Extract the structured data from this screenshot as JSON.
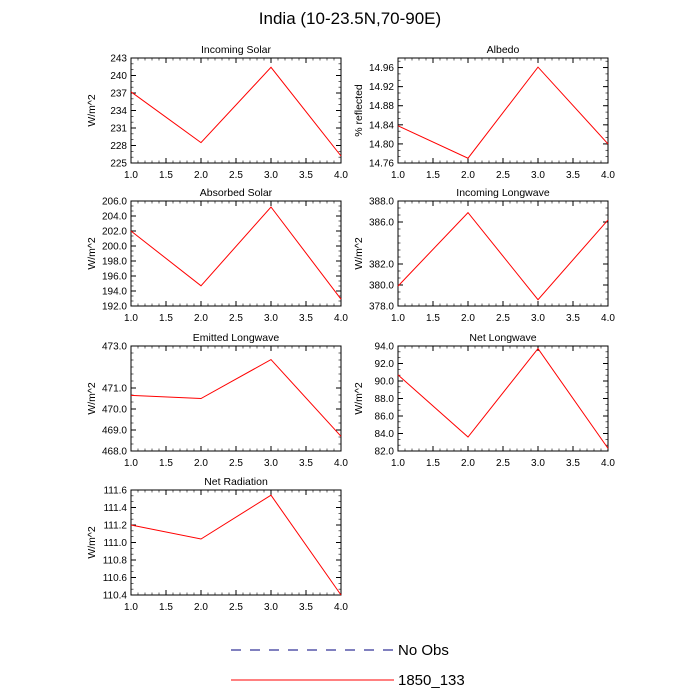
{
  "figure": {
    "title": "India (10-23.5N,70-90E)",
    "line_color": "#ff0000",
    "obs_color": "#00007f"
  },
  "legend": {
    "entries": [
      {
        "label": "No Obs",
        "style": "dashed"
      },
      {
        "label": "1850_133",
        "style": "solid"
      }
    ]
  },
  "chart_data": [
    {
      "type": "line",
      "title": "Incoming Solar",
      "ylabel": "W/m^2",
      "x": [
        1.0,
        2.0,
        3.0,
        4.0
      ],
      "values": [
        237.2,
        228.5,
        241.4,
        226.2
      ],
      "xlim": [
        1.0,
        4.0
      ],
      "ylim": [
        225,
        243
      ],
      "yticks": [
        "225",
        "228",
        "231",
        "234",
        "237",
        "240",
        "243"
      ],
      "xticks": [
        "1.0",
        "1.5",
        "2.0",
        "2.5",
        "3.0",
        "3.5",
        "4.0"
      ]
    },
    {
      "type": "line",
      "title": "Albedo",
      "ylabel": "% reflected",
      "x": [
        1.0,
        2.0,
        3.0,
        4.0
      ],
      "values": [
        14.838,
        14.77,
        14.961,
        14.8
      ],
      "xlim": [
        1.0,
        4.0
      ],
      "ylim": [
        14.76,
        14.98
      ],
      "yticks": [
        "14.76",
        "14.80",
        "14.84",
        "14.88",
        "14.92",
        "14.96"
      ],
      "xticks": [
        "1.0",
        "1.5",
        "2.0",
        "2.5",
        "3.0",
        "3.5",
        "4.0"
      ]
    },
    {
      "type": "line",
      "title": "Absorbed Solar",
      "ylabel": "W/m^2",
      "x": [
        1.0,
        2.0,
        3.0,
        4.0
      ],
      "values": [
        202.0,
        194.7,
        205.2,
        192.9
      ],
      "xlim": [
        1.0,
        4.0
      ],
      "ylim": [
        192.0,
        206.0
      ],
      "yticks": [
        "192.0",
        "194.0",
        "196.0",
        "198.0",
        "200.0",
        "202.0",
        "204.0",
        "206.0"
      ],
      "xticks": [
        "1.0",
        "1.5",
        "2.0",
        "2.5",
        "3.0",
        "3.5",
        "4.0"
      ]
    },
    {
      "type": "line",
      "title": "Incoming Longwave",
      "ylabel": "W/m^2",
      "x": [
        1.0,
        2.0,
        3.0,
        4.0
      ],
      "values": [
        379.9,
        386.9,
        378.6,
        386.2
      ],
      "xlim": [
        1.0,
        4.0
      ],
      "ylim": [
        378.0,
        388.0
      ],
      "yticks": [
        "378.0",
        "380.0",
        "382.0",
        "386.0",
        "388.0"
      ],
      "xticks": [
        "1.0",
        "1.5",
        "2.0",
        "2.5",
        "3.0",
        "3.5",
        "4.0"
      ]
    },
    {
      "type": "line",
      "title": "Emitted Longwave",
      "ylabel": "W/m^2",
      "x": [
        1.0,
        2.0,
        3.0,
        4.0
      ],
      "values": [
        470.65,
        470.5,
        472.35,
        468.7
      ],
      "xlim": [
        1.0,
        4.0
      ],
      "ylim": [
        468.0,
        473.0
      ],
      "yticks": [
        "468.0",
        "469.0",
        "470.0",
        "471.0",
        "473.0"
      ],
      "xticks": [
        "1.0",
        "1.5",
        "2.0",
        "2.5",
        "3.0",
        "3.5",
        "4.0"
      ]
    },
    {
      "type": "line",
      "title": "Net Longwave",
      "ylabel": "W/m^2",
      "x": [
        1.0,
        2.0,
        3.0,
        4.0
      ],
      "values": [
        90.7,
        83.6,
        93.7,
        82.3
      ],
      "xlim": [
        1.0,
        4.0
      ],
      "ylim": [
        82.0,
        94.0
      ],
      "yticks": [
        "82.0",
        "84.0",
        "86.0",
        "88.0",
        "90.0",
        "92.0",
        "94.0"
      ],
      "xticks": [
        "1.0",
        "1.5",
        "2.0",
        "2.5",
        "3.0",
        "3.5",
        "4.0"
      ]
    },
    {
      "type": "line",
      "title": "Net Radiation",
      "ylabel": "W/m^2",
      "x": [
        1.0,
        2.0,
        3.0,
        4.0
      ],
      "values": [
        111.2,
        111.04,
        111.54,
        110.4
      ],
      "xlim": [
        1.0,
        4.0
      ],
      "ylim": [
        110.4,
        111.6
      ],
      "yticks": [
        "110.4",
        "110.6",
        "110.8",
        "111.0",
        "111.2",
        "111.4",
        "111.6"
      ],
      "xticks": [
        "1.0",
        "1.5",
        "2.0",
        "2.5",
        "3.0",
        "3.5",
        "4.0"
      ]
    }
  ]
}
